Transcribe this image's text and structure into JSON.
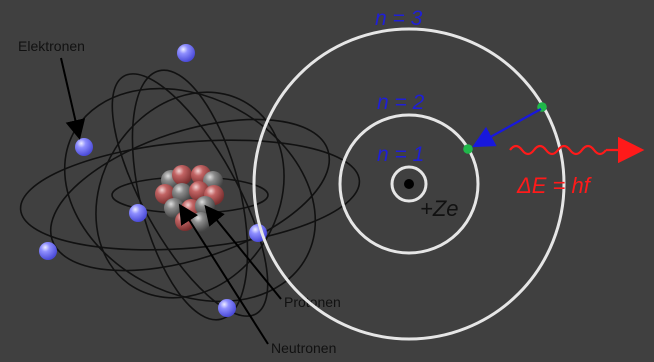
{
  "labels": {
    "electrons": "Elektronen",
    "protons": "Protonen",
    "neutrons": "Neutronen",
    "nucleus_charge": "+Ze",
    "orbit_1": "n = 1",
    "orbit_2": "n = 2",
    "orbit_3": "n = 3",
    "energy": "ΔE = hf"
  },
  "colors": {
    "background": "#404040",
    "orbit_ring": "#e6e6e6",
    "orbit_text": "#1f1fd6",
    "electron": "#6f6ff6",
    "electron_highlight": "#c9c9ff",
    "transition_arrow": "#1818dd",
    "transition_electron": "#20b84a",
    "photon": "#ff1a1a",
    "proton": "#a64a4a",
    "neutron": "#686868"
  },
  "icons": {
    "electron": "electron-sphere",
    "proton": "proton-sphere",
    "neutron": "neutron-sphere",
    "photon": "photon-wave-icon",
    "arrow": "arrow-icon"
  }
}
